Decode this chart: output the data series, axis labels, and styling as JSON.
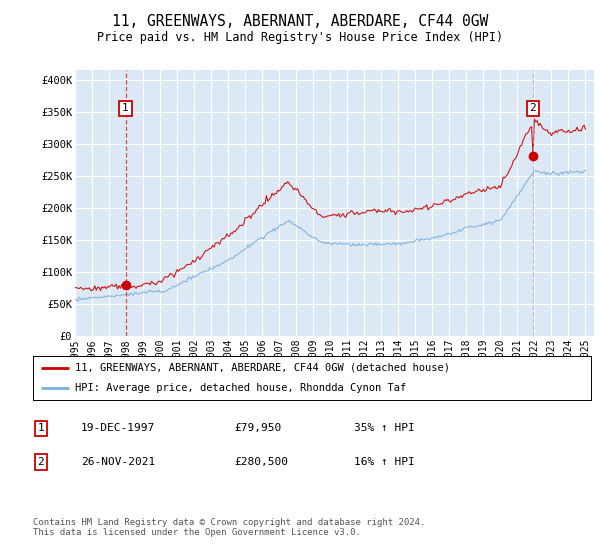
{
  "title": "11, GREENWAYS, ABERNANT, ABERDARE, CF44 0GW",
  "subtitle": "Price paid vs. HM Land Registry's House Price Index (HPI)",
  "ylabel_ticks": [
    "£0",
    "£50K",
    "£100K",
    "£150K",
    "£200K",
    "£250K",
    "£300K",
    "£350K",
    "£400K"
  ],
  "ytick_values": [
    0,
    50000,
    100000,
    150000,
    200000,
    250000,
    300000,
    350000,
    400000
  ],
  "ylim": [
    0,
    415000
  ],
  "xlim_start": 1995.0,
  "xlim_end": 2025.5,
  "background_color": "#dce9f5",
  "grid_color": "#ffffff",
  "red_line_color": "#cc0000",
  "blue_line_color": "#7aafdd",
  "sale1_x": 1997.97,
  "sale1_y": 79950,
  "sale1_label": "1",
  "sale1_date": "19-DEC-1997",
  "sale1_price": "£79,950",
  "sale1_hpi": "35% ↑ HPI",
  "sale2_x": 2021.9,
  "sale2_y": 280500,
  "sale2_label": "2",
  "sale2_date": "26-NOV-2021",
  "sale2_price": "£280,500",
  "sale2_hpi": "16% ↑ HPI",
  "legend_line1": "11, GREENWAYS, ABERNANT, ABERDARE, CF44 0GW (detached house)",
  "legend_line2": "HPI: Average price, detached house, Rhondda Cynon Taf",
  "footer": "Contains HM Land Registry data © Crown copyright and database right 2024.\nThis data is licensed under the Open Government Licence v3.0.",
  "xtick_years": [
    1995,
    1996,
    1997,
    1998,
    1999,
    2000,
    2001,
    2002,
    2003,
    2004,
    2005,
    2006,
    2007,
    2008,
    2009,
    2010,
    2011,
    2012,
    2013,
    2014,
    2015,
    2016,
    2017,
    2018,
    2019,
    2020,
    2021,
    2022,
    2023,
    2024,
    2025
  ]
}
